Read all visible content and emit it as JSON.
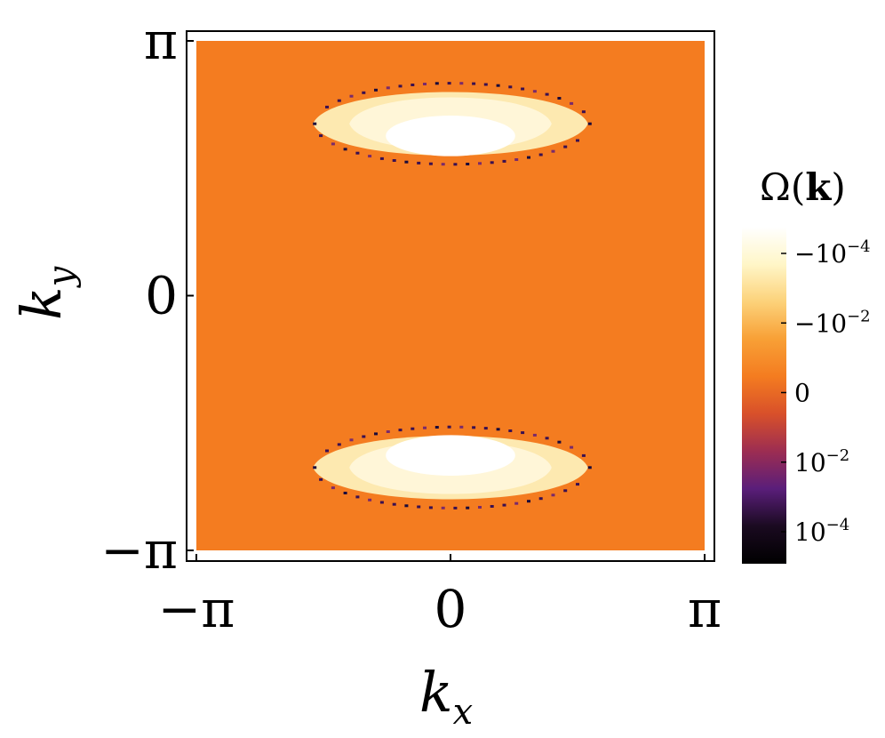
{
  "chart_data": {
    "type": "heatmap",
    "x_label_main": "k",
    "x_label_sub": "x",
    "y_label_main": "k",
    "y_label_sub": "y",
    "x_ticks": [
      "−π",
      "0",
      "π"
    ],
    "x_tick_values": [
      -3.14159,
      0,
      3.14159
    ],
    "y_ticks": [
      "−π",
      "0",
      "π"
    ],
    "y_tick_values": [
      -3.14159,
      0,
      3.14159
    ],
    "xlim": [
      -3.14159,
      3.14159
    ],
    "ylim": [
      -3.14159,
      3.14159
    ],
    "background_value": 0,
    "background_color": "#f47c20",
    "regions": [
      {
        "shape": "lens",
        "center": [
          0,
          2.0
        ],
        "half_width": 1.7,
        "top_y": 2.62,
        "bottom_y": 1.62,
        "inner_half_width": 0.8,
        "inner_top_y": 2.22,
        "inner_bottom_y": 1.72,
        "value": "-1e-4",
        "edge_value": "1e-4"
      },
      {
        "shape": "lens",
        "center": [
          0,
          -2.0
        ],
        "half_width": 1.7,
        "top_y": -1.62,
        "bottom_y": -2.62,
        "inner_half_width": 0.8,
        "inner_top_y": -1.72,
        "inner_bottom_y": -2.22,
        "value": "-1e-4",
        "edge_value": "1e-4"
      }
    ],
    "colorbar": {
      "title_main": "Ω(",
      "title_bold": "k",
      "title_end": ")",
      "ticks": [
        {
          "base": "−10",
          "exp": "−4"
        },
        {
          "base": "−10",
          "exp": "−2"
        },
        {
          "base": "0",
          "exp": ""
        },
        {
          "base": "10",
          "exp": "−2"
        },
        {
          "base": "10",
          "exp": "−4"
        }
      ],
      "colors_top_to_bottom": [
        "#ffffff",
        "#fff6c8",
        "#fcd27a",
        "#f8a036",
        "#f47c20",
        "#d8502a",
        "#9c2d52",
        "#5a1e7a",
        "#1a0a20",
        "#000000"
      ]
    }
  }
}
